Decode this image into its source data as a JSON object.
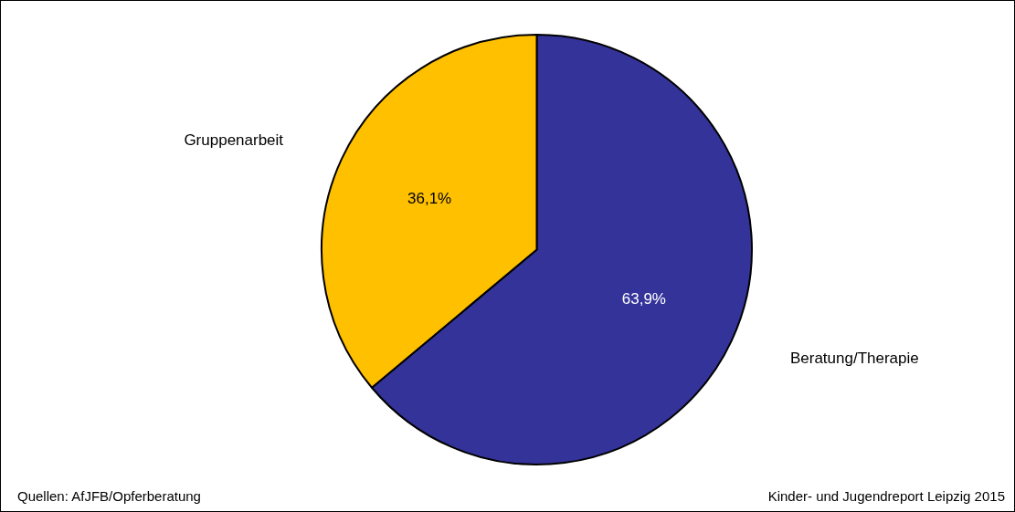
{
  "chart_data": {
    "type": "pie",
    "categories": [
      "Beratung/Therapie",
      "Gruppenarbeit"
    ],
    "values": [
      63.9,
      36.1
    ],
    "colors": [
      "#333399",
      "#ffc000"
    ],
    "value_labels": [
      "63,9%",
      "36,1%"
    ],
    "legend": false,
    "annotations": [
      "Quellen: AfJFB/Opferberatung",
      "Kinder- und Jugendreport Leipzig 2015"
    ]
  }
}
